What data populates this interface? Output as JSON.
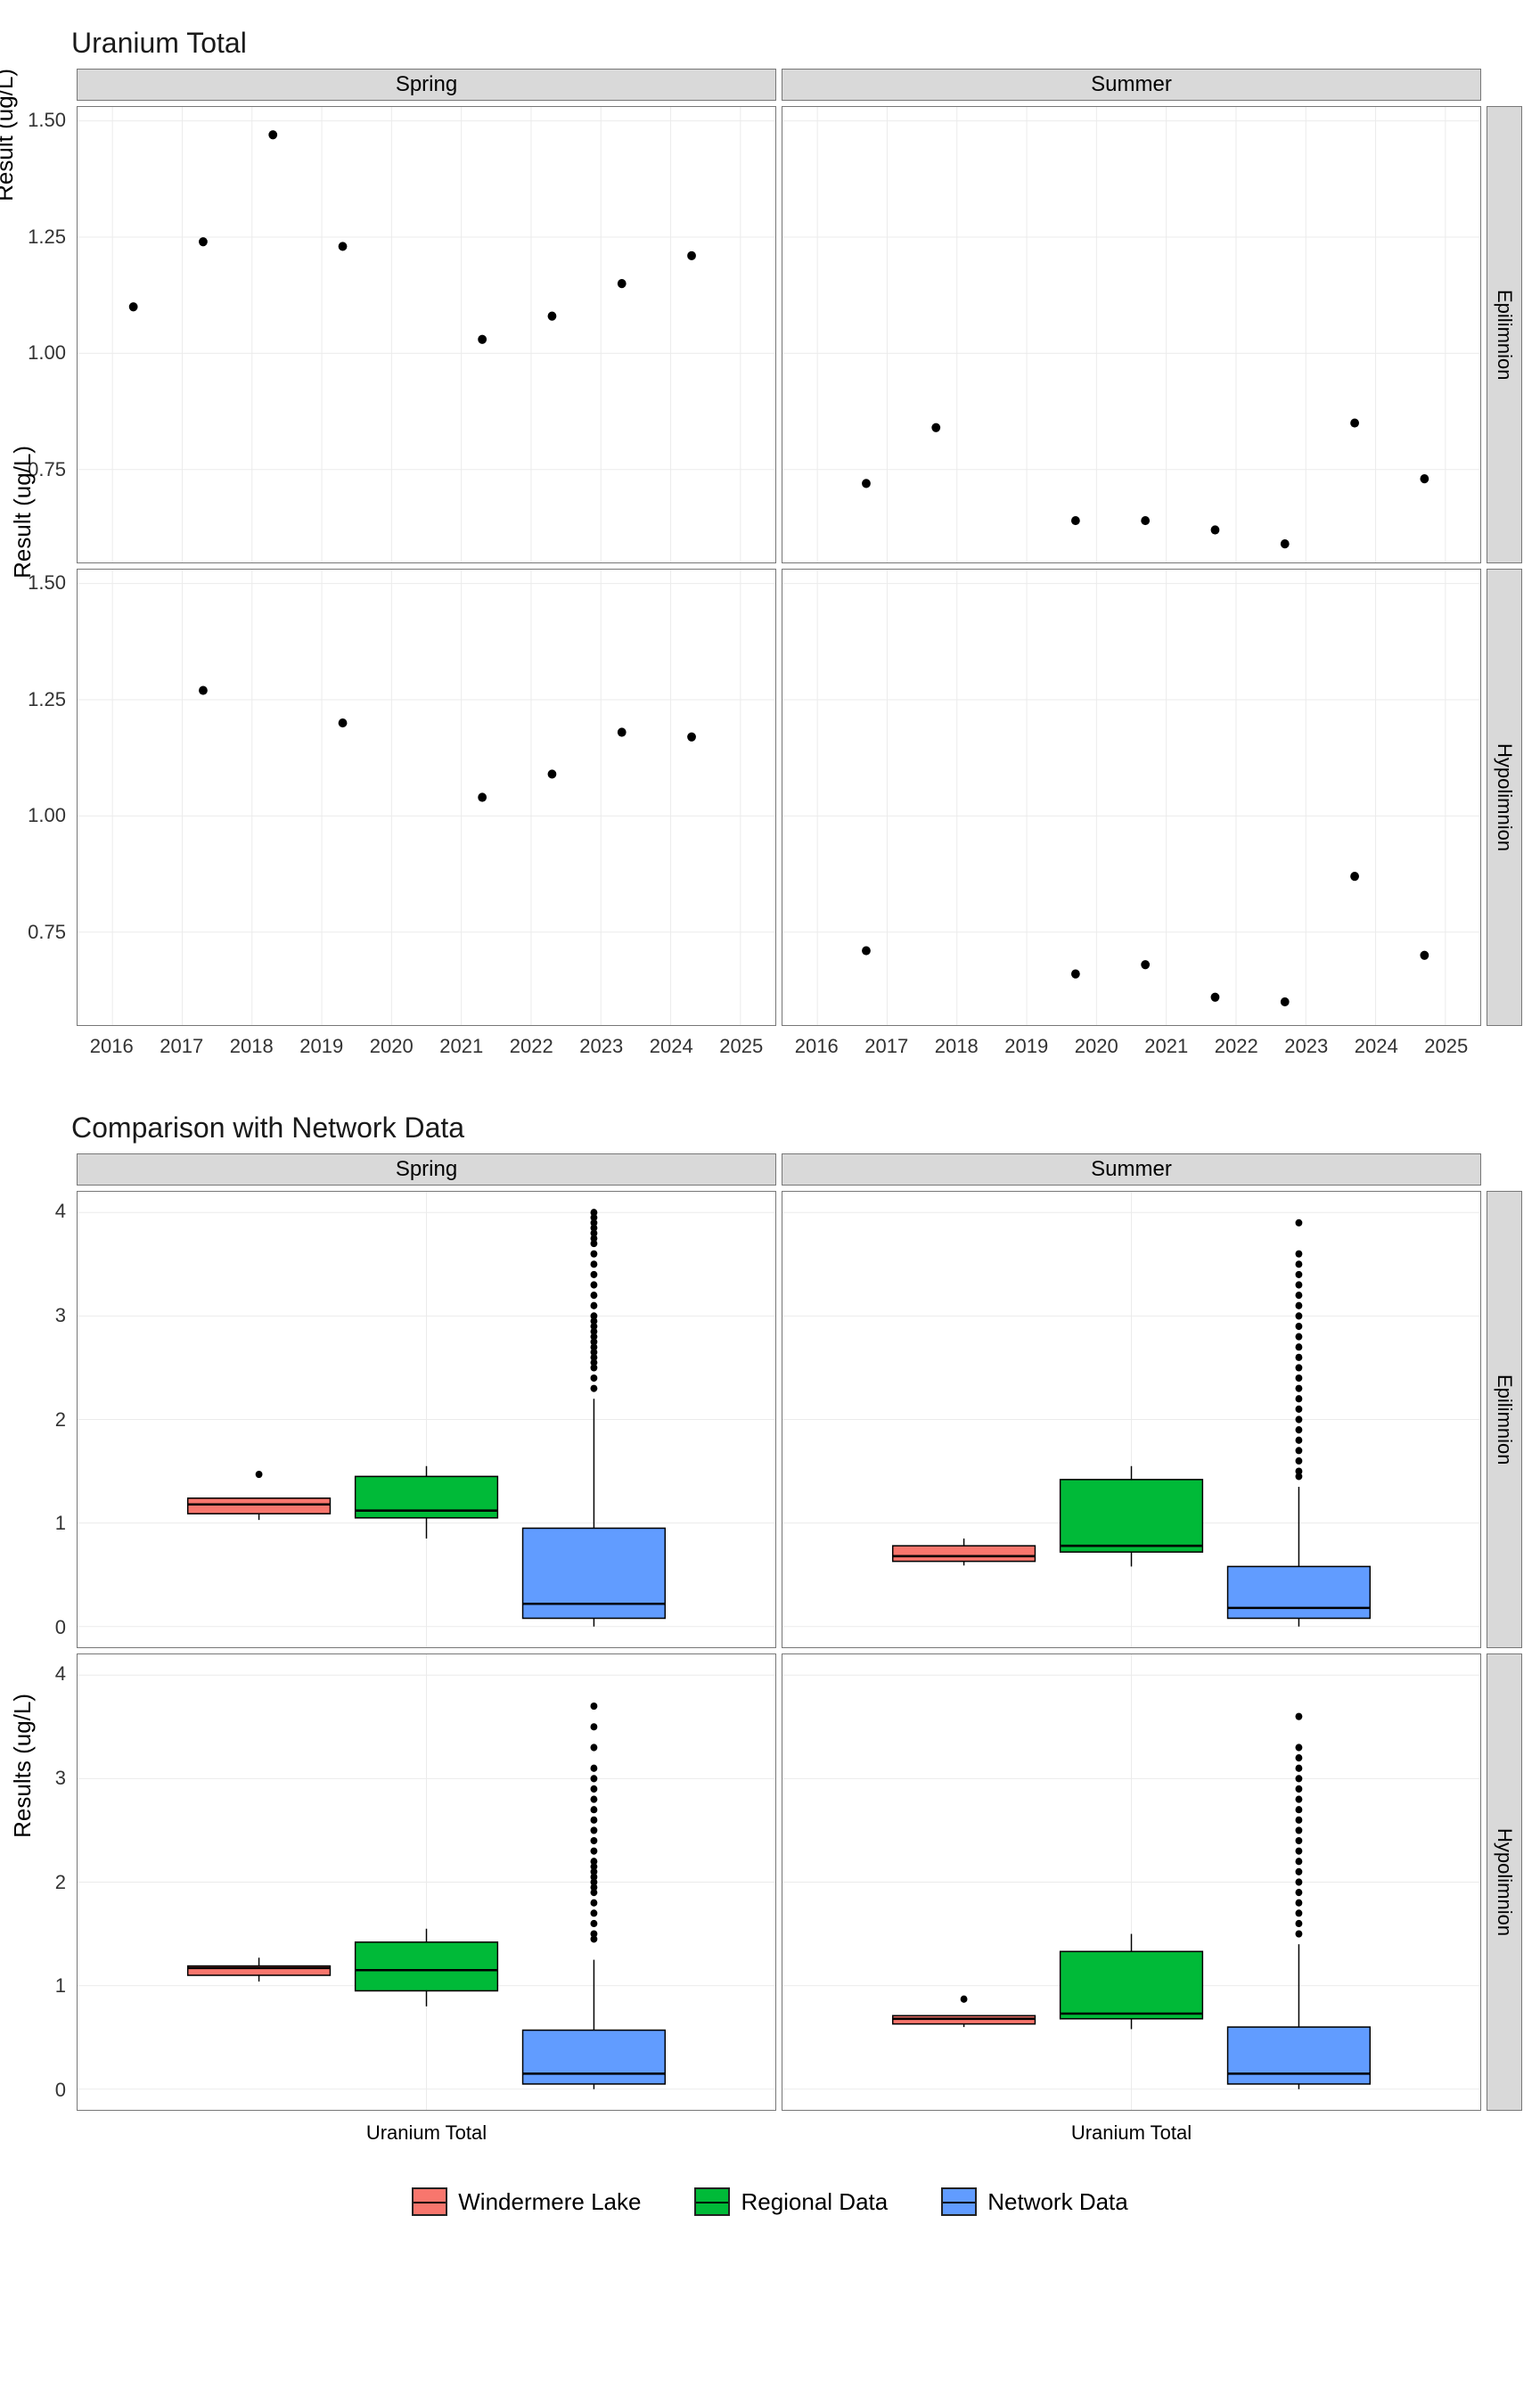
{
  "scatter": {
    "title": "Uranium Total",
    "ylabel": "Result (ug/L)",
    "col_facets": [
      "Spring",
      "Summer"
    ],
    "row_facets": [
      "Epilimnion",
      "Hypolimnion"
    ],
    "x_domain": [
      2015.5,
      2025.5
    ],
    "x_ticks": [
      2016,
      2017,
      2018,
      2019,
      2020,
      2021,
      2022,
      2023,
      2024,
      2025
    ],
    "y_domain": [
      0.55,
      1.53
    ],
    "y_ticks": [
      0.75,
      1.0,
      1.25,
      1.5
    ],
    "point_color": "#000000",
    "point_radius": 5,
    "grid_color": "#ebebeb",
    "panels": {
      "Spring_Epilimnion": [
        {
          "x": 2016.3,
          "y": 1.1
        },
        {
          "x": 2017.3,
          "y": 1.24
        },
        {
          "x": 2018.3,
          "y": 1.47
        },
        {
          "x": 2019.3,
          "y": 1.23
        },
        {
          "x": 2021.3,
          "y": 1.03
        },
        {
          "x": 2022.3,
          "y": 1.08
        },
        {
          "x": 2023.3,
          "y": 1.15
        },
        {
          "x": 2024.3,
          "y": 1.21
        }
      ],
      "Summer_Epilimnion": [
        {
          "x": 2016.7,
          "y": 0.72
        },
        {
          "x": 2017.7,
          "y": 0.84
        },
        {
          "x": 2019.7,
          "y": 0.64
        },
        {
          "x": 2020.7,
          "y": 0.64
        },
        {
          "x": 2021.7,
          "y": 0.62
        },
        {
          "x": 2022.7,
          "y": 0.59
        },
        {
          "x": 2023.7,
          "y": 0.85
        },
        {
          "x": 2024.7,
          "y": 0.73
        }
      ],
      "Spring_Hypolimnion": [
        {
          "x": 2017.3,
          "y": 1.27
        },
        {
          "x": 2019.3,
          "y": 1.2
        },
        {
          "x": 2021.3,
          "y": 1.04
        },
        {
          "x": 2022.3,
          "y": 1.09
        },
        {
          "x": 2023.3,
          "y": 1.18
        },
        {
          "x": 2024.3,
          "y": 1.17
        }
      ],
      "Summer_Hypolimnion": [
        {
          "x": 2016.7,
          "y": 0.71
        },
        {
          "x": 2019.7,
          "y": 0.66
        },
        {
          "x": 2020.7,
          "y": 0.68
        },
        {
          "x": 2021.7,
          "y": 0.61
        },
        {
          "x": 2022.7,
          "y": 0.6
        },
        {
          "x": 2023.7,
          "y": 0.87
        },
        {
          "x": 2024.7,
          "y": 0.7
        }
      ]
    }
  },
  "box": {
    "title": "Comparison with Network Data",
    "ylabel": "Results (ug/L)",
    "xlabel": "Uranium Total",
    "col_facets": [
      "Spring",
      "Summer"
    ],
    "row_facets": [
      "Epilimnion",
      "Hypolimnion"
    ],
    "y_domain": [
      -0.2,
      4.2
    ],
    "y_ticks": [
      0,
      1,
      2,
      3,
      4
    ],
    "grid_color": "#ebebeb",
    "series": [
      {
        "name": "Windermere Lake",
        "color": "#f8766d"
      },
      {
        "name": "Regional Data",
        "color": "#00ba38"
      },
      {
        "name": "Network Data",
        "color": "#619cff"
      }
    ],
    "panels": {
      "Spring_Epilimnion": {
        "boxes": [
          {
            "min": 1.03,
            "q1": 1.09,
            "med": 1.18,
            "q3": 1.24,
            "max": 1.24,
            "outliers": [
              1.47
            ]
          },
          {
            "min": 0.85,
            "q1": 1.05,
            "med": 1.12,
            "q3": 1.45,
            "max": 1.55,
            "outliers": []
          },
          {
            "min": 0.0,
            "q1": 0.08,
            "med": 0.22,
            "q3": 0.95,
            "max": 2.2,
            "outliers": [
              2.3,
              2.4,
              2.5,
              2.55,
              2.6,
              2.65,
              2.7,
              2.75,
              2.8,
              2.85,
              2.9,
              2.95,
              3.0,
              3.1,
              3.2,
              3.3,
              3.4,
              3.5,
              3.6,
              3.7,
              3.75,
              3.8,
              3.85,
              3.9,
              3.95,
              4.0
            ]
          }
        ]
      },
      "Summer_Epilimnion": {
        "boxes": [
          {
            "min": 0.59,
            "q1": 0.63,
            "med": 0.68,
            "q3": 0.78,
            "max": 0.85,
            "outliers": []
          },
          {
            "min": 0.58,
            "q1": 0.72,
            "med": 0.78,
            "q3": 1.42,
            "max": 1.55,
            "outliers": []
          },
          {
            "min": 0.0,
            "q1": 0.08,
            "med": 0.18,
            "q3": 0.58,
            "max": 1.35,
            "outliers": [
              1.45,
              1.5,
              1.6,
              1.7,
              1.8,
              1.9,
              2.0,
              2.1,
              2.2,
              2.3,
              2.4,
              2.5,
              2.6,
              2.7,
              2.8,
              2.9,
              3.0,
              3.1,
              3.2,
              3.3,
              3.4,
              3.5,
              3.6,
              3.9
            ]
          }
        ]
      },
      "Spring_Hypolimnion": {
        "boxes": [
          {
            "min": 1.04,
            "q1": 1.1,
            "med": 1.17,
            "q3": 1.19,
            "max": 1.27,
            "outliers": []
          },
          {
            "min": 0.8,
            "q1": 0.95,
            "med": 1.15,
            "q3": 1.42,
            "max": 1.55,
            "outliers": []
          },
          {
            "min": 0.0,
            "q1": 0.05,
            "med": 0.15,
            "q3": 0.57,
            "max": 1.25,
            "outliers": [
              1.45,
              1.5,
              1.6,
              1.7,
              1.8,
              1.9,
              1.95,
              2.0,
              2.05,
              2.1,
              2.15,
              2.2,
              2.3,
              2.4,
              2.5,
              2.6,
              2.7,
              2.8,
              2.9,
              3.0,
              3.1,
              3.3,
              3.5,
              3.7
            ]
          }
        ]
      },
      "Summer_Hypolimnion": {
        "boxes": [
          {
            "min": 0.6,
            "q1": 0.63,
            "med": 0.68,
            "q3": 0.71,
            "max": 0.71,
            "outliers": [
              0.87
            ]
          },
          {
            "min": 0.58,
            "q1": 0.68,
            "med": 0.73,
            "q3": 1.33,
            "max": 1.5,
            "outliers": []
          },
          {
            "min": 0.0,
            "q1": 0.05,
            "med": 0.15,
            "q3": 0.6,
            "max": 1.4,
            "outliers": [
              1.5,
              1.6,
              1.7,
              1.8,
              1.9,
              2.0,
              2.1,
              2.2,
              2.3,
              2.4,
              2.5,
              2.6,
              2.7,
              2.8,
              2.9,
              3.0,
              3.1,
              3.2,
              3.3,
              3.6
            ]
          }
        ]
      }
    }
  }
}
